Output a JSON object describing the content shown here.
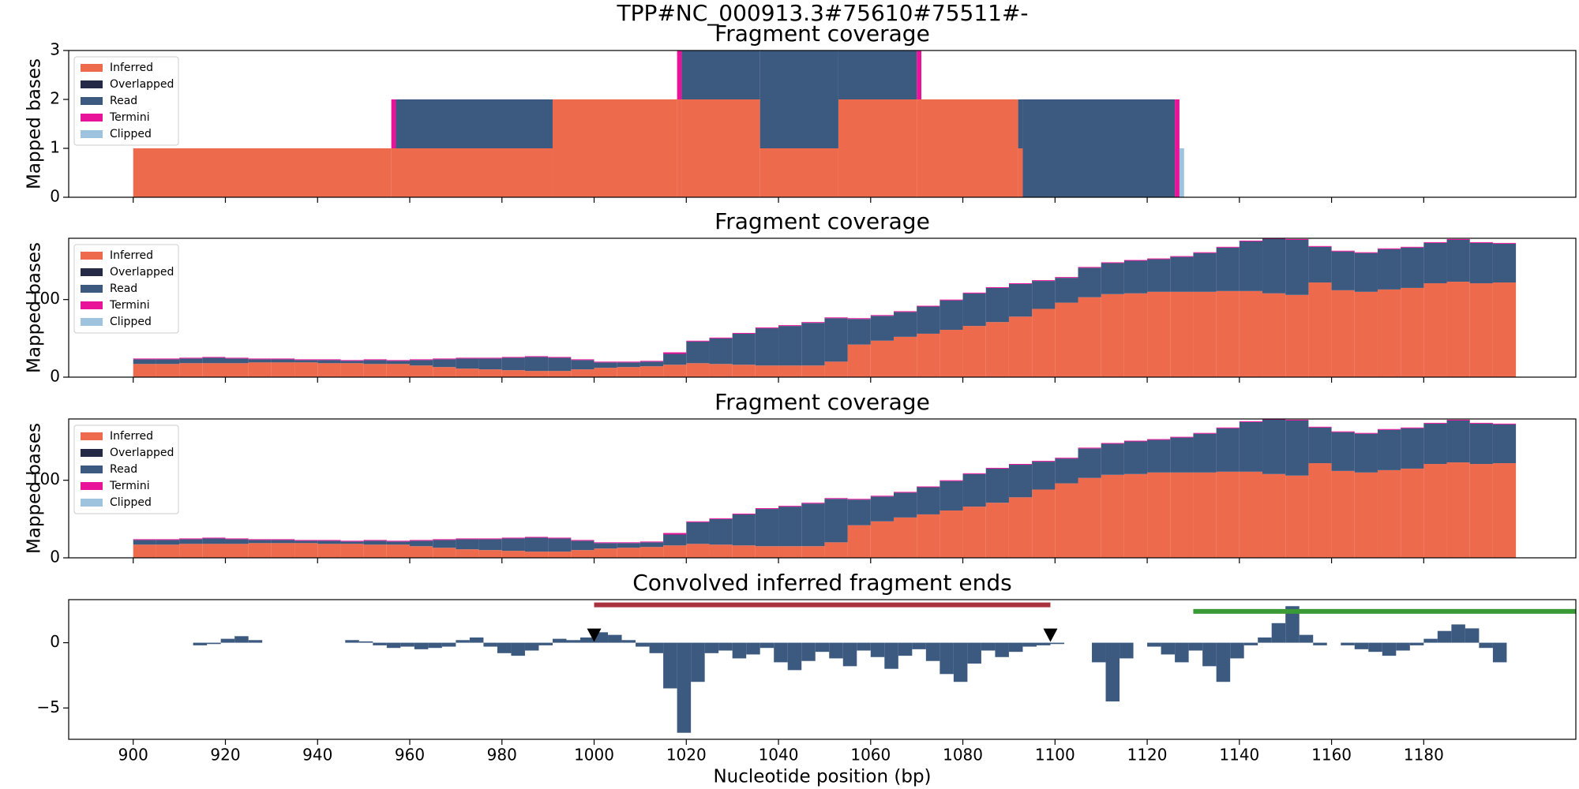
{
  "title": "TPP#NC_000913.3#75610#75511#-",
  "chart_data": [
    {
      "type": "histogram",
      "stacked": true,
      "title": "Fragment coverage",
      "y_label": "Mapped bases",
      "legend": "upper left",
      "xlim": [
        886,
        1213
      ],
      "xticks": [
        900,
        920,
        940,
        960,
        980,
        1000,
        1020,
        1040,
        1060,
        1080,
        1100,
        1120,
        1140,
        1160,
        1180
      ],
      "ylim": [
        0,
        3
      ],
      "yticks": [
        0,
        1,
        2,
        3
      ],
      "bins": [
        900,
        956,
        957,
        991,
        1018,
        1019,
        1036,
        1053,
        1070,
        1071,
        1092,
        1093,
        1126,
        1127,
        1128
      ],
      "series": [
        {
          "name": "Inferred",
          "color": "#ee6a4d",
          "values": [
            1,
            1,
            1,
            2,
            2,
            2,
            1,
            2,
            2,
            2,
            1,
            0,
            0,
            0
          ]
        },
        {
          "name": "Overlapped",
          "color": "#242a45",
          "values": [
            0,
            0,
            0,
            0,
            0,
            0,
            0,
            0,
            0,
            0,
            0,
            0,
            0,
            0
          ]
        },
        {
          "name": "Read",
          "color": "#3c5a80",
          "values": [
            0,
            0,
            1,
            0,
            0,
            1,
            2,
            1,
            0,
            0,
            1,
            2,
            0,
            0
          ]
        },
        {
          "name": "Termini",
          "color": "#e9139a",
          "values": [
            0,
            1,
            0,
            0,
            1,
            0,
            0,
            0,
            1,
            0,
            0,
            0,
            2,
            0
          ]
        },
        {
          "name": "Clipped",
          "color": "#9dc3de",
          "values": [
            0,
            0,
            0,
            0,
            0,
            0,
            0,
            0,
            0,
            0,
            0,
            0,
            0,
            1
          ]
        }
      ]
    },
    {
      "type": "histogram",
      "stacked": true,
      "title": "Fragment coverage",
      "y_label": "Mapped bases",
      "legend": "upper left",
      "xlim": [
        886,
        1213
      ],
      "xticks": [
        900,
        920,
        940,
        960,
        980,
        1000,
        1020,
        1040,
        1060,
        1080,
        1100,
        1120,
        1140,
        1160,
        1180
      ],
      "ylim": [
        0,
        179
      ],
      "yticks": [
        0,
        100
      ],
      "bins": [
        900,
        905,
        910,
        915,
        920,
        925,
        930,
        935,
        940,
        945,
        950,
        955,
        960,
        965,
        970,
        975,
        980,
        985,
        990,
        995,
        1000,
        1005,
        1010,
        1015,
        1020,
        1025,
        1030,
        1035,
        1040,
        1045,
        1050,
        1055,
        1060,
        1065,
        1070,
        1075,
        1080,
        1085,
        1090,
        1095,
        1100,
        1105,
        1110,
        1115,
        1120,
        1125,
        1130,
        1135,
        1140,
        1145,
        1150,
        1155,
        1160,
        1165,
        1170,
        1175,
        1180,
        1185,
        1190,
        1195,
        1200
      ],
      "series": [
        {
          "name": "Inferred",
          "color": "#ee6a4d",
          "values": [
            17,
            17,
            18,
            18,
            18,
            19,
            19,
            19,
            18,
            18,
            17,
            17,
            15,
            13,
            11,
            10,
            9,
            8,
            8,
            10,
            12,
            13,
            14,
            16,
            18,
            17,
            16,
            15,
            15,
            15,
            20,
            42,
            47,
            52,
            56,
            61,
            66,
            71,
            78,
            88,
            96,
            103,
            107,
            108,
            110,
            110,
            110,
            111,
            111,
            108,
            106,
            122,
            112,
            110,
            113,
            115,
            121,
            123,
            121,
            122
          ]
        },
        {
          "name": "Overlapped",
          "color": "#242a45",
          "values": [
            0,
            0,
            0,
            0,
            0,
            0,
            0,
            0,
            0,
            0,
            0,
            0,
            0,
            0,
            0,
            0,
            0,
            0,
            0,
            0,
            0,
            0,
            0,
            0,
            0,
            0,
            0,
            0,
            0,
            0,
            0,
            0,
            0,
            0,
            0,
            0,
            0,
            0,
            0,
            0,
            0,
            0,
            0,
            0,
            0,
            0,
            0,
            0,
            0,
            0,
            0,
            0,
            0,
            0,
            0,
            0,
            0,
            0,
            0,
            0
          ]
        },
        {
          "name": "Read",
          "color": "#3c5a80",
          "values": [
            6,
            6,
            6,
            7,
            6,
            4,
            4,
            3,
            4,
            3,
            5,
            4,
            7,
            10,
            13,
            14,
            16,
            18,
            17,
            12,
            7,
            6,
            6,
            14,
            28,
            33,
            40,
            48,
            51,
            55,
            56,
            33,
            32,
            32,
            35,
            38,
            42,
            44,
            42,
            36,
            32,
            38,
            40,
            42,
            42,
            45,
            50,
            56,
            64,
            70,
            71,
            46,
            50,
            50,
            52,
            52,
            52,
            54,
            52,
            50
          ]
        },
        {
          "name": "Termini",
          "color": "#e9139a",
          "values": [
            1,
            1,
            1,
            1,
            1,
            1,
            1,
            1,
            1,
            1,
            1,
            1,
            1,
            1,
            1,
            1,
            1,
            1,
            1,
            1,
            1,
            1,
            1,
            2,
            1,
            1,
            1,
            1,
            1,
            1,
            1,
            1,
            1,
            1,
            1,
            1,
            1,
            1,
            1,
            1,
            1,
            1,
            1,
            1,
            1,
            1,
            1,
            1,
            1,
            1,
            1,
            1,
            1,
            1,
            1,
            1,
            1,
            1,
            1,
            1
          ]
        },
        {
          "name": "Clipped",
          "color": "#9dc3de",
          "values": [
            0,
            0,
            0,
            0,
            0,
            0,
            0,
            0,
            0,
            0,
            0,
            0,
            0,
            0,
            0,
            0,
            0,
            0,
            0,
            0,
            0,
            0,
            0,
            0,
            0,
            0,
            0,
            0,
            0,
            0,
            0,
            0,
            0,
            0,
            0,
            0,
            0,
            0,
            0,
            0,
            0,
            0,
            0,
            0,
            0,
            0,
            0,
            0,
            0,
            0,
            0,
            0,
            0,
            0,
            0,
            0,
            0,
            0,
            0,
            0
          ]
        }
      ]
    },
    {
      "type": "histogram",
      "stacked": true,
      "title": "Fragment coverage",
      "y_label": "Mapped bases",
      "legend": "upper left",
      "xlim": [
        886,
        1213
      ],
      "xticks": [
        900,
        920,
        940,
        960,
        980,
        1000,
        1020,
        1040,
        1060,
        1080,
        1100,
        1120,
        1140,
        1160,
        1180
      ],
      "ylim": [
        0,
        179
      ],
      "yticks": [
        0,
        100
      ],
      "bins": [
        900,
        905,
        910,
        915,
        920,
        925,
        930,
        935,
        940,
        945,
        950,
        955,
        960,
        965,
        970,
        975,
        980,
        985,
        990,
        995,
        1000,
        1005,
        1010,
        1015,
        1020,
        1025,
        1030,
        1035,
        1040,
        1045,
        1050,
        1055,
        1060,
        1065,
        1070,
        1075,
        1080,
        1085,
        1090,
        1095,
        1100,
        1105,
        1110,
        1115,
        1120,
        1125,
        1130,
        1135,
        1140,
        1145,
        1150,
        1155,
        1160,
        1165,
        1170,
        1175,
        1180,
        1185,
        1190,
        1195,
        1200
      ],
      "series": [
        {
          "name": "Inferred",
          "color": "#ee6a4d",
          "values": [
            17,
            17,
            18,
            18,
            18,
            19,
            19,
            19,
            18,
            18,
            17,
            17,
            15,
            13,
            11,
            10,
            9,
            8,
            8,
            10,
            12,
            13,
            14,
            16,
            18,
            17,
            16,
            15,
            15,
            15,
            20,
            42,
            47,
            52,
            56,
            61,
            66,
            71,
            78,
            88,
            96,
            103,
            107,
            108,
            110,
            110,
            110,
            111,
            111,
            108,
            106,
            122,
            112,
            110,
            113,
            115,
            121,
            123,
            121,
            122
          ]
        },
        {
          "name": "Overlapped",
          "color": "#242a45",
          "values": [
            0,
            0,
            0,
            0,
            0,
            0,
            0,
            0,
            0,
            0,
            0,
            0,
            0,
            0,
            0,
            0,
            0,
            0,
            0,
            0,
            0,
            0,
            0,
            0,
            0,
            0,
            0,
            0,
            0,
            0,
            0,
            0,
            0,
            0,
            0,
            0,
            0,
            0,
            0,
            0,
            0,
            0,
            0,
            0,
            0,
            0,
            0,
            0,
            0,
            0,
            0,
            0,
            0,
            0,
            0,
            0,
            0,
            0,
            0,
            0
          ]
        },
        {
          "name": "Read",
          "color": "#3c5a80",
          "values": [
            6,
            6,
            6,
            7,
            6,
            4,
            4,
            3,
            4,
            3,
            5,
            4,
            7,
            10,
            13,
            14,
            16,
            18,
            17,
            12,
            7,
            6,
            6,
            14,
            28,
            33,
            40,
            48,
            51,
            55,
            56,
            33,
            32,
            32,
            35,
            38,
            42,
            44,
            42,
            36,
            32,
            38,
            40,
            42,
            42,
            45,
            50,
            56,
            64,
            70,
            71,
            46,
            50,
            50,
            52,
            52,
            52,
            54,
            52,
            50
          ]
        },
        {
          "name": "Termini",
          "color": "#e9139a",
          "values": [
            1,
            1,
            1,
            1,
            1,
            1,
            1,
            1,
            1,
            1,
            1,
            1,
            1,
            1,
            1,
            1,
            1,
            1,
            1,
            1,
            1,
            1,
            1,
            2,
            1,
            1,
            1,
            1,
            1,
            1,
            1,
            1,
            1,
            1,
            1,
            1,
            1,
            1,
            1,
            1,
            1,
            1,
            1,
            1,
            1,
            1,
            1,
            1,
            1,
            1,
            1,
            1,
            1,
            1,
            1,
            1,
            1,
            1,
            1,
            1
          ]
        },
        {
          "name": "Clipped",
          "color": "#9dc3de",
          "values": [
            0,
            0,
            0,
            0,
            0,
            0,
            0,
            0,
            0,
            0,
            0,
            0,
            0,
            0,
            0,
            0,
            0,
            0,
            0,
            0,
            0,
            0,
            0,
            0,
            0,
            0,
            0,
            0,
            0,
            0,
            0,
            0,
            0,
            0,
            0,
            0,
            0,
            0,
            0,
            0,
            0,
            0,
            0,
            0,
            0,
            0,
            0,
            0,
            0,
            0,
            0,
            0,
            0,
            0,
            0,
            0,
            0,
            0,
            0,
            0
          ]
        }
      ]
    },
    {
      "type": "histogram",
      "title": "Convolved inferred fragment ends",
      "x_label": "Nucleotide position (bp)",
      "xlim": [
        886,
        1213
      ],
      "xticks": [
        900,
        920,
        940,
        960,
        980,
        1000,
        1020,
        1040,
        1060,
        1080,
        1100,
        1120,
        1140,
        1160,
        1180
      ],
      "ylim": [
        -7.4,
        3.3
      ],
      "yticks": [
        {
          "value": -5,
          "label": "−5"
        },
        0
      ],
      "color": "#3c5a80",
      "bins": [
        910,
        913,
        916,
        919,
        922,
        925,
        928,
        931,
        934,
        937,
        940,
        943,
        946,
        949,
        952,
        955,
        958,
        961,
        964,
        967,
        970,
        973,
        976,
        979,
        982,
        985,
        988,
        991,
        994,
        997,
        1000,
        1003,
        1006,
        1009,
        1012,
        1015,
        1018,
        1021,
        1024,
        1027,
        1030,
        1033,
        1036,
        1039,
        1042,
        1045,
        1048,
        1051,
        1054,
        1057,
        1060,
        1063,
        1066,
        1069,
        1072,
        1075,
        1078,
        1081,
        1084,
        1087,
        1090,
        1093,
        1096,
        1099,
        1102,
        1105,
        1108,
        1111,
        1114,
        1117,
        1120,
        1123,
        1126,
        1129,
        1132,
        1135,
        1138,
        1141,
        1144,
        1147,
        1150,
        1153,
        1156,
        1159,
        1162,
        1165,
        1168,
        1171,
        1174,
        1177,
        1180,
        1183,
        1186,
        1189,
        1192,
        1195,
        1198
      ],
      "values": [
        null,
        -0.2,
        -0.1,
        0.3,
        0.5,
        0.2,
        null,
        null,
        null,
        null,
        null,
        null,
        0.2,
        0.1,
        -0.2,
        -0.4,
        -0.3,
        -0.5,
        -0.4,
        -0.3,
        0.2,
        0.4,
        -0.3,
        -0.8,
        -1,
        -0.6,
        -0.2,
        0.3,
        0.2,
        0.4,
        0.8,
        0.6,
        0.2,
        -0.3,
        -0.8,
        -3.5,
        -6.9,
        -3,
        -0.8,
        -0.6,
        -1.2,
        -0.9,
        -0.4,
        -1.5,
        -2.1,
        -1.4,
        -0.7,
        -1.2,
        -1.8,
        -0.6,
        -1.1,
        -2,
        -1,
        -0.5,
        -1.4,
        -2.4,
        -3,
        -1.6,
        -0.6,
        -1.1,
        -0.7,
        -0.3,
        -0.2,
        -0.1,
        null,
        null,
        -1.5,
        -4.5,
        -1.2,
        null,
        -0.3,
        -0.9,
        -1.5,
        -0.6,
        -1.8,
        -3,
        -1.2,
        -0.2,
        0.4,
        1.5,
        2.8,
        0.6,
        -0.2,
        null,
        -0.2,
        -0.5,
        -0.7,
        -1,
        -0.6,
        -0.2,
        0.3,
        0.9,
        1.4,
        1.1,
        -0.4,
        -1.5
      ],
      "lines": [
        {
          "x": [
            1000,
            1099
          ],
          "y": 2.9,
          "color": "#a8323e"
        },
        {
          "x": [
            1130,
            1213
          ],
          "y": 2.4,
          "color": "#3a9a35"
        }
      ],
      "markers": {
        "x": [
          1000,
          1099
        ],
        "y": [
          0.6,
          0.6
        ],
        "color": "#000000"
      }
    }
  ]
}
